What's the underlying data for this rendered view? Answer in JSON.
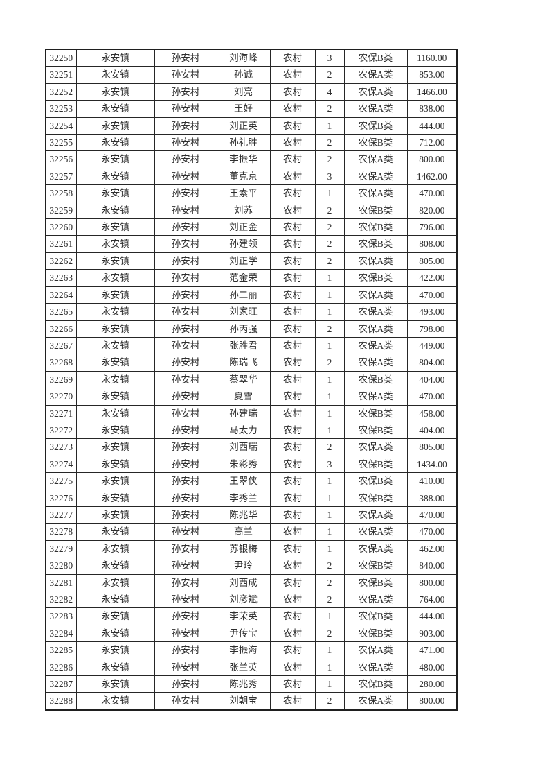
{
  "table": {
    "column_keys": [
      "record-id",
      "town",
      "village",
      "person-name",
      "residence-type",
      "person-count",
      "insurance-category",
      "amount"
    ],
    "rows": [
      [
        "32250",
        "永安镇",
        "孙安村",
        "刘海峰",
        "农村",
        "3",
        "农保B类",
        "1160.00"
      ],
      [
        "32251",
        "永安镇",
        "孙安村",
        "孙诚",
        "农村",
        "2",
        "农保A类",
        "853.00"
      ],
      [
        "32252",
        "永安镇",
        "孙安村",
        "刘亮",
        "农村",
        "4",
        "农保A类",
        "1466.00"
      ],
      [
        "32253",
        "永安镇",
        "孙安村",
        "王好",
        "农村",
        "2",
        "农保A类",
        "838.00"
      ],
      [
        "32254",
        "永安镇",
        "孙安村",
        "刘正英",
        "农村",
        "1",
        "农保B类",
        "444.00"
      ],
      [
        "32255",
        "永安镇",
        "孙安村",
        "孙礼胜",
        "农村",
        "2",
        "农保B类",
        "712.00"
      ],
      [
        "32256",
        "永安镇",
        "孙安村",
        "李振华",
        "农村",
        "2",
        "农保A类",
        "800.00"
      ],
      [
        "32257",
        "永安镇",
        "孙安村",
        "董克京",
        "农村",
        "3",
        "农保A类",
        "1462.00"
      ],
      [
        "32258",
        "永安镇",
        "孙安村",
        "王素平",
        "农村",
        "1",
        "农保A类",
        "470.00"
      ],
      [
        "32259",
        "永安镇",
        "孙安村",
        "刘苏",
        "农村",
        "2",
        "农保B类",
        "820.00"
      ],
      [
        "32260",
        "永安镇",
        "孙安村",
        "刘正金",
        "农村",
        "2",
        "农保B类",
        "796.00"
      ],
      [
        "32261",
        "永安镇",
        "孙安村",
        "孙建领",
        "农村",
        "2",
        "农保B类",
        "808.00"
      ],
      [
        "32262",
        "永安镇",
        "孙安村",
        "刘正学",
        "农村",
        "2",
        "农保A类",
        "805.00"
      ],
      [
        "32263",
        "永安镇",
        "孙安村",
        "范金荣",
        "农村",
        "1",
        "农保B类",
        "422.00"
      ],
      [
        "32264",
        "永安镇",
        "孙安村",
        "孙二丽",
        "农村",
        "1",
        "农保A类",
        "470.00"
      ],
      [
        "32265",
        "永安镇",
        "孙安村",
        "刘家旺",
        "农村",
        "1",
        "农保A类",
        "493.00"
      ],
      [
        "32266",
        "永安镇",
        "孙安村",
        "孙丙强",
        "农村",
        "2",
        "农保A类",
        "798.00"
      ],
      [
        "32267",
        "永安镇",
        "孙安村",
        "张胜君",
        "农村",
        "1",
        "农保A类",
        "449.00"
      ],
      [
        "32268",
        "永安镇",
        "孙安村",
        "陈瑞飞",
        "农村",
        "2",
        "农保A类",
        "804.00"
      ],
      [
        "32269",
        "永安镇",
        "孙安村",
        "蔡翠华",
        "农村",
        "1",
        "农保B类",
        "404.00"
      ],
      [
        "32270",
        "永安镇",
        "孙安村",
        "夏雪",
        "农村",
        "1",
        "农保A类",
        "470.00"
      ],
      [
        "32271",
        "永安镇",
        "孙安村",
        "孙建瑞",
        "农村",
        "1",
        "农保B类",
        "458.00"
      ],
      [
        "32272",
        "永安镇",
        "孙安村",
        "马太力",
        "农村",
        "1",
        "农保B类",
        "404.00"
      ],
      [
        "32273",
        "永安镇",
        "孙安村",
        "刘西瑞",
        "农村",
        "2",
        "农保A类",
        "805.00"
      ],
      [
        "32274",
        "永安镇",
        "孙安村",
        "朱彩秀",
        "农村",
        "3",
        "农保B类",
        "1434.00"
      ],
      [
        "32275",
        "永安镇",
        "孙安村",
        "王翠侠",
        "农村",
        "1",
        "农保B类",
        "410.00"
      ],
      [
        "32276",
        "永安镇",
        "孙安村",
        "李秀兰",
        "农村",
        "1",
        "农保B类",
        "388.00"
      ],
      [
        "32277",
        "永安镇",
        "孙安村",
        "陈兆华",
        "农村",
        "1",
        "农保A类",
        "470.00"
      ],
      [
        "32278",
        "永安镇",
        "孙安村",
        "高兰",
        "农村",
        "1",
        "农保A类",
        "470.00"
      ],
      [
        "32279",
        "永安镇",
        "孙安村",
        "苏银梅",
        "农村",
        "1",
        "农保A类",
        "462.00"
      ],
      [
        "32280",
        "永安镇",
        "孙安村",
        "尹玲",
        "农村",
        "2",
        "农保B类",
        "840.00"
      ],
      [
        "32281",
        "永安镇",
        "孙安村",
        "刘西成",
        "农村",
        "2",
        "农保B类",
        "800.00"
      ],
      [
        "32282",
        "永安镇",
        "孙安村",
        "刘彦斌",
        "农村",
        "2",
        "农保A类",
        "764.00"
      ],
      [
        "32283",
        "永安镇",
        "孙安村",
        "李荣英",
        "农村",
        "1",
        "农保B类",
        "444.00"
      ],
      [
        "32284",
        "永安镇",
        "孙安村",
        "尹传宝",
        "农村",
        "2",
        "农保B类",
        "903.00"
      ],
      [
        "32285",
        "永安镇",
        "孙安村",
        "李振海",
        "农村",
        "1",
        "农保A类",
        "471.00"
      ],
      [
        "32286",
        "永安镇",
        "孙安村",
        "张兰英",
        "农村",
        "1",
        "农保A类",
        "480.00"
      ],
      [
        "32287",
        "永安镇",
        "孙安村",
        "陈兆秀",
        "农村",
        "1",
        "农保B类",
        "280.00"
      ],
      [
        "32288",
        "永安镇",
        "孙安村",
        "刘朝宝",
        "农村",
        "2",
        "农保A类",
        "800.00"
      ]
    ]
  }
}
